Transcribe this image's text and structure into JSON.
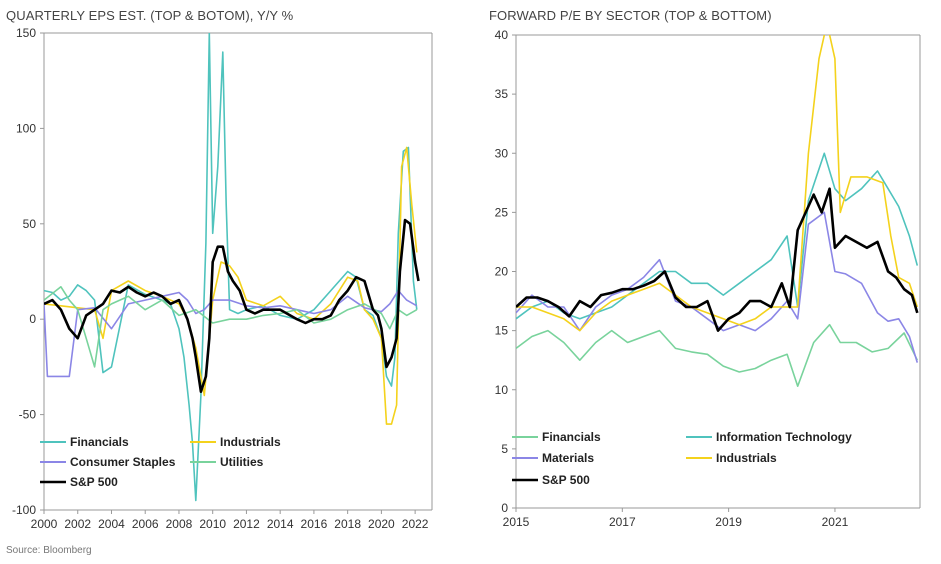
{
  "left_title": "QUARTERLY EPS EST. (TOP & BOTOM), Y/Y %",
  "right_title": "FORWARD P/E BY SECTOR (TOP & BOTTOM)",
  "source": "Source: Bloomberg",
  "colors": {
    "Financials": "#4fc3bd",
    "Industrials": "#f4d21c",
    "Consumer Staples": "#8b86e6",
    "Utilities": "#79d39c",
    "S&P 500": "#000000",
    "Information Technology": "#4fc3bd",
    "Materials": "#8b86e6",
    "Financials-right": "#79d39c",
    "axis": "#999999"
  },
  "chart_data": [
    {
      "type": "line",
      "title": "QUARTERLY EPS EST. (TOP & BOTOM), Y/Y %",
      "xlim": [
        2000,
        2023
      ],
      "ylim": [
        -100,
        150
      ],
      "yticks": [
        -100,
        -50,
        0,
        50,
        100,
        150
      ],
      "xticks": [
        2000,
        2002,
        2004,
        2006,
        2008,
        2010,
        2012,
        2014,
        2016,
        2018,
        2020,
        2022
      ],
      "grid": false,
      "legend": "bottom-left",
      "series": [
        {
          "name": "Financials",
          "x": [
            2000,
            2000.5,
            2001,
            2001.5,
            2002,
            2002.5,
            2003,
            2003.5,
            2004,
            2005,
            2006,
            2007,
            2007.5,
            2008,
            2008.3,
            2008.6,
            2008.8,
            2009,
            2009.3,
            2009.6,
            2009.8,
            2010,
            2010.3,
            2010.6,
            2010.8,
            2011,
            2011.5,
            2012,
            2013,
            2014,
            2015,
            2016,
            2017,
            2018,
            2018.5,
            2019,
            2019.5,
            2020,
            2020.3,
            2020.6,
            2020.8,
            2021,
            2021.3,
            2021.6,
            2021.9,
            2022.1
          ],
          "y": [
            15,
            14,
            10,
            12,
            18,
            15,
            10,
            -28,
            -25,
            18,
            13,
            10,
            8,
            -5,
            -20,
            -45,
            -65,
            -95,
            -40,
            40,
            150,
            45,
            80,
            140,
            60,
            5,
            3,
            5,
            7,
            2,
            0,
            5,
            15,
            25,
            22,
            5,
            2,
            -10,
            -30,
            -35,
            -20,
            45,
            88,
            90,
            20,
            5
          ]
        },
        {
          "name": "Industrials",
          "x": [
            2000,
            2001,
            2002,
            2003,
            2003.5,
            2004,
            2005,
            2006,
            2007,
            2008,
            2008.5,
            2009,
            2009.5,
            2010,
            2010.5,
            2011,
            2011.5,
            2012,
            2013,
            2014,
            2015,
            2016,
            2017,
            2018,
            2018.6,
            2019,
            2019.5,
            2020,
            2020.3,
            2020.6,
            2020.9,
            2021.2,
            2021.5,
            2021.8,
            2022.1
          ],
          "y": [
            8,
            7,
            6,
            5,
            -10,
            15,
            20,
            15,
            12,
            8,
            0,
            -15,
            -40,
            10,
            30,
            28,
            22,
            10,
            7,
            12,
            3,
            0,
            8,
            22,
            20,
            5,
            0,
            -10,
            -55,
            -55,
            -45,
            80,
            90,
            60,
            35
          ]
        },
        {
          "name": "Consumer Staples",
          "x": [
            2000,
            2000.2,
            2001,
            2001.5,
            2002,
            2003,
            2004,
            2005,
            2006,
            2007,
            2008,
            2008.5,
            2009,
            2009.5,
            2010,
            2011,
            2012,
            2013,
            2014,
            2015,
            2016,
            2017,
            2018,
            2019,
            2020,
            2020.5,
            2021,
            2021.5,
            2022.1
          ],
          "y": [
            8,
            -30,
            -30,
            -30,
            5,
            6,
            -5,
            8,
            10,
            12,
            14,
            10,
            3,
            5,
            10,
            10,
            7,
            6,
            7,
            5,
            3,
            5,
            12,
            6,
            4,
            8,
            15,
            10,
            7
          ]
        },
        {
          "name": "Utilities",
          "x": [
            2000,
            2001,
            2001.5,
            2002,
            2002.5,
            2003,
            2003.5,
            2004,
            2005,
            2006,
            2007,
            2008,
            2009,
            2010,
            2011,
            2012,
            2013,
            2014,
            2015,
            2016,
            2017,
            2018,
            2019,
            2020,
            2020.5,
            2021,
            2021.5,
            2022.1
          ],
          "y": [
            10,
            17,
            10,
            5,
            -10,
            -25,
            5,
            8,
            12,
            5,
            10,
            2,
            5,
            -2,
            0,
            0,
            2,
            3,
            5,
            -2,
            0,
            5,
            8,
            3,
            -5,
            5,
            2,
            5
          ]
        },
        {
          "name": "S&P 500",
          "x": [
            2000,
            2000.5,
            2001,
            2001.5,
            2002,
            2002.5,
            2003,
            2003.5,
            2004,
            2004.5,
            2005,
            2005.5,
            2006,
            2006.5,
            2007,
            2007.5,
            2008,
            2008.5,
            2008.8,
            2009,
            2009.3,
            2009.6,
            2009.8,
            2010,
            2010.3,
            2010.6,
            2010.9,
            2011.2,
            2011.6,
            2012,
            2012.5,
            2013,
            2014,
            2015,
            2015.5,
            2016,
            2016.5,
            2017,
            2017.5,
            2018,
            2018.5,
            2019,
            2019.5,
            2019.8,
            2020,
            2020.3,
            2020.6,
            2020.9,
            2021.1,
            2021.4,
            2021.7,
            2022,
            2022.2
          ],
          "y": [
            8,
            10,
            5,
            -5,
            -10,
            2,
            5,
            8,
            15,
            14,
            17,
            14,
            12,
            14,
            12,
            8,
            10,
            0,
            -10,
            -20,
            -38,
            -30,
            -10,
            30,
            38,
            38,
            25,
            20,
            15,
            5,
            3,
            5,
            5,
            0,
            -2,
            0,
            0,
            2,
            10,
            15,
            22,
            20,
            5,
            2,
            -5,
            -25,
            -20,
            -10,
            25,
            52,
            50,
            30,
            20
          ]
        }
      ]
    },
    {
      "type": "line",
      "title": "FORWARD P/E BY SECTOR (TOP & BOTTOM)",
      "xlim": [
        2015,
        2022.6
      ],
      "ylim": [
        0,
        40
      ],
      "yticks": [
        0,
        5,
        10,
        15,
        20,
        25,
        30,
        35,
        40
      ],
      "xticks": [
        2015,
        2017,
        2019,
        2021
      ],
      "grid": false,
      "legend": "bottom",
      "series": [
        {
          "name": "Financials",
          "x": [
            2015,
            2015.3,
            2015.6,
            2015.9,
            2016.2,
            2016.5,
            2016.8,
            2017.1,
            2017.4,
            2017.7,
            2018,
            2018.3,
            2018.6,
            2018.9,
            2019.2,
            2019.5,
            2019.8,
            2020.1,
            2020.3,
            2020.6,
            2020.9,
            2021.1,
            2021.4,
            2021.7,
            2022,
            2022.3,
            2022.55
          ],
          "y": [
            13.5,
            14.5,
            15,
            14,
            12.5,
            14,
            15,
            14,
            14.5,
            15,
            13.5,
            13.2,
            13,
            12,
            11.5,
            11.8,
            12.5,
            13,
            10.3,
            14,
            15.5,
            14,
            14,
            13.2,
            13.5,
            14.8,
            12.5
          ]
        },
        {
          "name": "Information Technology",
          "x": [
            2015,
            2015.3,
            2015.6,
            2015.9,
            2016.2,
            2016.5,
            2016.8,
            2017.1,
            2017.4,
            2017.7,
            2018,
            2018.3,
            2018.6,
            2018.9,
            2019.2,
            2019.5,
            2019.8,
            2020.1,
            2020.3,
            2020.5,
            2020.8,
            2021,
            2021.2,
            2021.5,
            2021.8,
            2022,
            2022.2,
            2022.4,
            2022.55
          ],
          "y": [
            16,
            17,
            17.5,
            16.5,
            16,
            16.5,
            17,
            18,
            19,
            20,
            20,
            19,
            19,
            18,
            19,
            20,
            21,
            23,
            17,
            26,
            30,
            27,
            26,
            27,
            28.5,
            27,
            25.5,
            23,
            20.5
          ]
        },
        {
          "name": "Materials",
          "x": [
            2015,
            2015.3,
            2015.6,
            2015.9,
            2016.2,
            2016.5,
            2016.8,
            2017.1,
            2017.4,
            2017.7,
            2018,
            2018.3,
            2018.6,
            2018.9,
            2019.2,
            2019.5,
            2019.8,
            2020.1,
            2020.3,
            2020.5,
            2020.8,
            2021,
            2021.2,
            2021.5,
            2021.8,
            2022,
            2022.2,
            2022.4,
            2022.55
          ],
          "y": [
            16.5,
            18,
            17,
            17,
            15,
            17,
            18,
            18.5,
            19.5,
            21,
            17.5,
            17,
            16,
            15,
            15.5,
            15,
            16,
            17.5,
            16,
            24,
            25,
            20,
            19.8,
            19,
            16.5,
            15.8,
            16,
            14.5,
            12.3
          ]
        },
        {
          "name": "Industrials",
          "x": [
            2015,
            2015.3,
            2015.6,
            2015.9,
            2016.2,
            2016.5,
            2016.8,
            2017.1,
            2017.4,
            2017.7,
            2018,
            2018.3,
            2018.6,
            2018.9,
            2019.2,
            2019.5,
            2019.8,
            2020.1,
            2020.3,
            2020.5,
            2020.7,
            2020.85,
            2021,
            2021.1,
            2021.3,
            2021.6,
            2021.9,
            2022.05,
            2022.2,
            2022.4,
            2022.55
          ],
          "y": [
            17,
            17,
            16.5,
            16,
            15,
            16.5,
            17.5,
            18,
            18.5,
            19,
            18,
            17,
            16.5,
            16,
            15.5,
            16,
            17,
            17,
            17,
            30,
            38,
            41,
            38,
            25,
            28,
            28,
            27.5,
            23,
            19.5,
            19,
            17
          ]
        },
        {
          "name": "S&P 500",
          "x": [
            2015,
            2015.2,
            2015.4,
            2015.6,
            2015.8,
            2016,
            2016.2,
            2016.4,
            2016.6,
            2016.8,
            2017,
            2017.2,
            2017.4,
            2017.6,
            2017.8,
            2018,
            2018.2,
            2018.4,
            2018.6,
            2018.8,
            2019,
            2019.2,
            2019.4,
            2019.6,
            2019.8,
            2020,
            2020.15,
            2020.3,
            2020.45,
            2020.6,
            2020.75,
            2020.9,
            2021,
            2021.2,
            2021.4,
            2021.6,
            2021.8,
            2022,
            2022.15,
            2022.3,
            2022.45,
            2022.55
          ],
          "y": [
            17,
            17.8,
            17.8,
            17.5,
            17,
            16.2,
            17.5,
            17,
            18,
            18.2,
            18.5,
            18.5,
            18.8,
            19.2,
            20,
            17.8,
            17,
            17,
            17.5,
            15,
            16,
            16.5,
            17.5,
            17.5,
            17,
            19,
            17,
            23.5,
            25,
            26.5,
            25,
            27,
            22,
            23,
            22.5,
            22,
            22.5,
            20,
            19.5,
            18.5,
            18,
            16.5
          ]
        }
      ]
    }
  ],
  "legend_left": {
    "items": [
      {
        "label": "Financials",
        "key": "Financials"
      },
      {
        "label": "Industrials",
        "key": "Industrials"
      },
      {
        "label": "Consumer Staples",
        "key": "Consumer Staples"
      },
      {
        "label": "Utilities",
        "key": "Utilities"
      },
      {
        "label": "S&P 500",
        "key": "S&P 500"
      }
    ]
  },
  "legend_right": {
    "items": [
      {
        "label": "Financials",
        "key": "Financials-right"
      },
      {
        "label": "Information Technology",
        "key": "Information Technology"
      },
      {
        "label": "Materials",
        "key": "Materials"
      },
      {
        "label": "Industrials",
        "key": "Industrials"
      },
      {
        "label": "S&P 500",
        "key": "S&P 500"
      }
    ]
  }
}
